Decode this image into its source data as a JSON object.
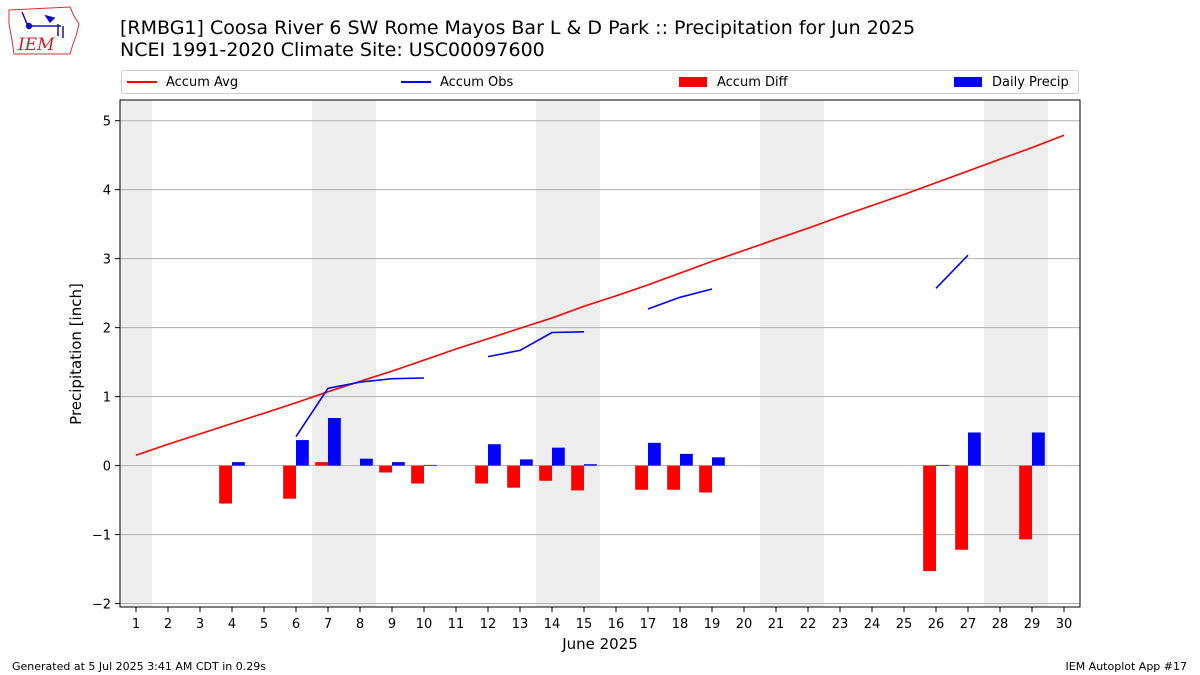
{
  "header": {
    "title_line1": "[RMBG1] Coosa River 6 SW Rome Mayos Bar L & D Park :: Precipitation for Jun 2025",
    "title_line2": "NCEI 1991-2020 Climate Site: USC00097600"
  },
  "logo": {
    "text": "IEM",
    "icon": "iem-iowa-logo"
  },
  "footer": {
    "generated": "Generated at 5 Jul 2025 3:41 AM CDT in 0.29s",
    "app": "IEM Autoplot App #17"
  },
  "colors": {
    "accum_avg": "#ff0000",
    "accum_obs": "#0000ff",
    "accum_diff": "#ff0000",
    "daily_precip": "#0000ff",
    "weekend_shade": "#eeeeee",
    "grid": "#b0b0b0"
  },
  "chart_data": {
    "type": "bar",
    "xlabel": "June 2025",
    "ylabel": "Precipitation [inch]",
    "xlim": [
      0.5,
      30.5
    ],
    "ylim": [
      -2.05,
      5.3
    ],
    "yticks": [
      -2,
      -1,
      0,
      1,
      2,
      3,
      4,
      5
    ],
    "ytick_labels": [
      "−2",
      "−1",
      "0",
      "1",
      "2",
      "3",
      "4",
      "5"
    ],
    "x": [
      1,
      2,
      3,
      4,
      5,
      6,
      7,
      8,
      9,
      10,
      11,
      12,
      13,
      14,
      15,
      16,
      17,
      18,
      19,
      20,
      21,
      22,
      23,
      24,
      25,
      26,
      27,
      28,
      29,
      30
    ],
    "grid": "horizontal",
    "legend_position": "top",
    "weekend_days": [
      1,
      7,
      8,
      14,
      15,
      21,
      22,
      28,
      29
    ],
    "series": [
      {
        "name": "Accum Avg",
        "type": "line",
        "values": [
          0.15,
          0.31,
          0.46,
          0.61,
          0.76,
          0.91,
          1.07,
          1.22,
          1.37,
          1.53,
          1.69,
          1.84,
          1.99,
          2.14,
          2.31,
          2.46,
          2.62,
          2.79,
          2.96,
          3.12,
          3.28,
          3.44,
          3.61,
          3.77,
          3.93,
          4.1,
          4.27,
          4.44,
          4.61,
          4.79
        ]
      },
      {
        "name": "Accum Obs",
        "type": "line",
        "values": [
          null,
          null,
          null,
          null,
          null,
          0.42,
          1.12,
          1.21,
          1.26,
          1.27,
          null,
          1.58,
          1.67,
          1.93,
          1.94,
          null,
          2.27,
          2.44,
          2.56,
          null,
          null,
          null,
          null,
          null,
          null,
          2.57,
          3.05,
          null,
          null,
          null
        ]
      },
      {
        "name": "Accum Diff",
        "type": "bar",
        "values": [
          null,
          null,
          null,
          -0.55,
          null,
          -0.48,
          0.05,
          null,
          -0.1,
          -0.26,
          null,
          -0.26,
          -0.32,
          -0.22,
          -0.36,
          null,
          -0.35,
          -0.35,
          -0.39,
          null,
          null,
          null,
          null,
          null,
          null,
          -1.53,
          -1.22,
          null,
          -1.07,
          null
        ]
      },
      {
        "name": "Daily Precip",
        "type": "bar",
        "values": [
          null,
          null,
          null,
          0.05,
          null,
          0.37,
          0.69,
          0.1,
          0.05,
          0.01,
          null,
          0.31,
          0.09,
          0.26,
          0.02,
          null,
          0.33,
          0.17,
          0.12,
          null,
          null,
          null,
          null,
          null,
          null,
          0.01,
          0.48,
          null,
          0.48,
          null
        ]
      }
    ]
  }
}
